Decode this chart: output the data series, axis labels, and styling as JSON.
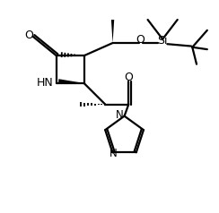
{
  "background_color": "#ffffff",
  "line_color": "#000000",
  "line_width": 1.6,
  "fig_width": 2.44,
  "fig_height": 2.38,
  "dpi": 100,
  "xlim": [
    0,
    10
  ],
  "ylim": [
    0,
    10
  ]
}
